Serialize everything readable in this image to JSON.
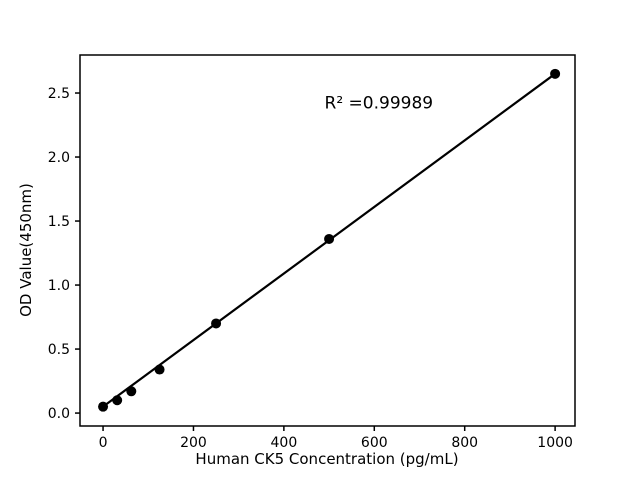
{
  "figure": {
    "background": "#ffffff",
    "foreground": "#000000"
  },
  "chart_data": {
    "type": "scatter",
    "title": "",
    "xlabel": "Human CK5 Concentration (pg/mL)",
    "ylabel": "OD Value(450nm)",
    "x": [
      0,
      31.25,
      62.5,
      125,
      250,
      500,
      1000
    ],
    "y": [
      0.05,
      0.1,
      0.17,
      0.34,
      0.7,
      1.36,
      2.65
    ],
    "trendline": {
      "x": [
        0,
        1000
      ],
      "y": [
        0.05,
        2.65
      ]
    },
    "annotation": {
      "text": "R² =0.99989",
      "x": 610,
      "y": 2.38
    },
    "xlim": [
      -51,
      1044
    ],
    "ylim": [
      -0.101,
      2.797
    ],
    "xticks": [
      0,
      200,
      400,
      600,
      800,
      1000
    ],
    "xtick_labels": [
      "0",
      "200",
      "400",
      "600",
      "800",
      "1000"
    ],
    "yticks": [
      0,
      0.5,
      1.0,
      1.5,
      2.0,
      2.5
    ],
    "ytick_labels": [
      "0.0",
      "0.5",
      "1.0",
      "1.5",
      "2.0",
      "2.5"
    ],
    "grid": false,
    "legend": null,
    "marker": "circle",
    "marker_radius": 5,
    "line_width": 2.2,
    "colors": {
      "line": "#000000",
      "marker": "#000000",
      "axis": "#000000",
      "text": "#000000",
      "background": "#ffffff"
    }
  }
}
